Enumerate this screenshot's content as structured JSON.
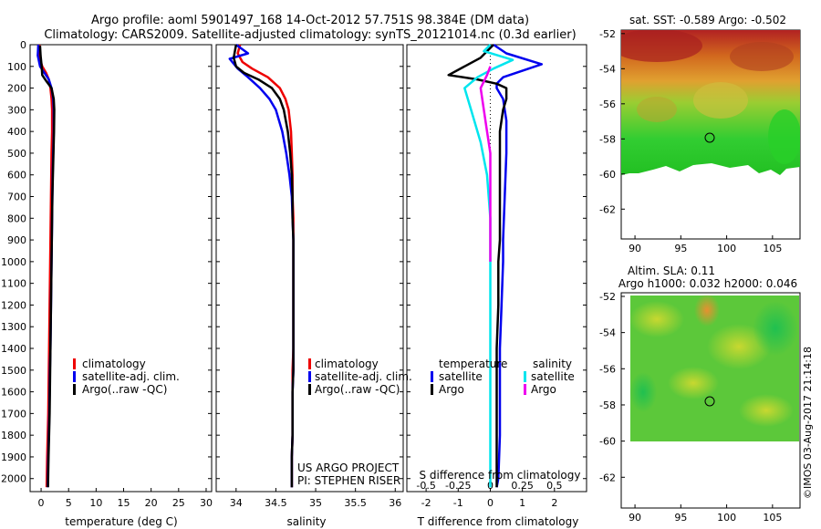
{
  "header": {
    "line1": "Argo profile: aoml 5901497_168 14-Oct-2012 57.751S 98.384E (DM data)",
    "line2": "Climatology: CARS2009. Satellite-adjusted climatology: synTS_20121014.nc (0.3d earlier)"
  },
  "credit": "©IMOS 03-Aug-2017 21:14:18",
  "project": {
    "line1": "US ARGO PROJECT",
    "line2": "PI: STEPHEN RISER"
  },
  "colors": {
    "climatology": "#ee0000",
    "satellite": "#0000ee",
    "argo": "#000000",
    "sal_satellite": "#00e5ee",
    "sal_argo": "#ee00ee"
  },
  "chart_data": [
    {
      "id": "temperature",
      "type": "line",
      "xlabel": "temperature (deg C)",
      "ylabel": "",
      "xlim": [
        -2,
        31
      ],
      "ylim": [
        2060,
        0
      ],
      "xticks": [
        0,
        5,
        10,
        15,
        20,
        25,
        30
      ],
      "yticks": [
        0,
        100,
        200,
        300,
        400,
        500,
        600,
        700,
        800,
        900,
        1000,
        1100,
        1200,
        1300,
        1400,
        1500,
        1600,
        1700,
        1800,
        1900,
        2000
      ],
      "legend": [
        "climatology",
        "satellite-adj. clim.",
        "Argo(..raw -QC)"
      ],
      "series": [
        {
          "name": "climatology",
          "color": "#ee0000",
          "x": [
            -0.3,
            -0.4,
            0.2,
            0.9,
            1.4,
            1.7,
            1.9,
            2.0,
            2.0,
            1.9,
            1.85,
            1.8,
            1.75,
            1.7,
            1.65,
            1.6,
            1.55,
            1.5,
            1.45,
            1.4,
            1.35,
            1.3,
            1.2,
            1.1,
            1.0
          ],
          "y": [
            0,
            50,
            100,
            130,
            160,
            200,
            250,
            300,
            400,
            500,
            600,
            700,
            800,
            900,
            1000,
            1100,
            1200,
            1300,
            1400,
            1500,
            1600,
            1700,
            1800,
            1900,
            2040
          ]
        },
        {
          "name": "satellite-adj. clim.",
          "color": "#0000ee",
          "x": [
            -0.5,
            -0.6,
            -0.2,
            0.6,
            1.4,
            1.9,
            2.2,
            2.3,
            2.3,
            2.2,
            2.1,
            2.05,
            2.0,
            1.95,
            1.9,
            1.85,
            1.8,
            1.75,
            1.7,
            1.6,
            1.55,
            1.5,
            1.4,
            1.3,
            1.2
          ],
          "y": [
            0,
            50,
            100,
            130,
            160,
            200,
            250,
            300,
            400,
            500,
            600,
            700,
            800,
            900,
            1000,
            1100,
            1200,
            1300,
            1400,
            1500,
            1600,
            1700,
            1800,
            1900,
            2040
          ]
        },
        {
          "name": "Argo(..raw -QC)",
          "color": "#000000",
          "x": [
            -0.2,
            -0.1,
            0.1,
            0.2,
            1.0,
            1.9,
            2.3,
            2.4,
            2.35,
            2.25,
            2.15,
            2.05,
            2.0,
            1.95,
            1.9,
            1.85,
            1.8,
            1.75,
            1.7,
            1.65,
            1.6,
            1.55,
            1.45,
            1.35,
            1.25
          ],
          "y": [
            5,
            50,
            100,
            140,
            170,
            200,
            250,
            300,
            400,
            500,
            600,
            700,
            800,
            900,
            1000,
            1100,
            1200,
            1300,
            1400,
            1500,
            1600,
            1700,
            1800,
            1900,
            2040
          ]
        }
      ]
    },
    {
      "id": "salinity",
      "type": "line",
      "xlabel": "salinity",
      "ylabel": "",
      "xlim": [
        33.75,
        36.1
      ],
      "ylim": [
        2060,
        0
      ],
      "xticks": [
        34,
        34.5,
        35,
        35.5,
        36
      ],
      "legend": [
        "climatology",
        "satellite-adj. clim.",
        "Argo(..raw -QC)"
      ],
      "series": [
        {
          "name": "climatology",
          "color": "#ee0000",
          "x": [
            34.05,
            34.02,
            34.08,
            34.2,
            34.4,
            34.55,
            34.62,
            34.66,
            34.69,
            34.7,
            34.71,
            34.71,
            34.72,
            34.72,
            34.72,
            34.72,
            34.72,
            34.72,
            34.72,
            34.71,
            34.71,
            34.71,
            34.71,
            34.7,
            34.7
          ],
          "y": [
            0,
            40,
            80,
            110,
            150,
            200,
            250,
            300,
            400,
            500,
            600,
            700,
            800,
            900,
            1000,
            1100,
            1200,
            1300,
            1400,
            1500,
            1600,
            1700,
            1800,
            1900,
            2040
          ]
        },
        {
          "name": "satellite-adj. clim.",
          "color": "#0000ee",
          "x": [
            34.0,
            34.15,
            33.92,
            34.02,
            34.15,
            34.3,
            34.42,
            34.5,
            34.58,
            34.63,
            34.67,
            34.7,
            34.71,
            34.72,
            34.72,
            34.72,
            34.72,
            34.72,
            34.72,
            34.72,
            34.71,
            34.71,
            34.71,
            34.7,
            34.7
          ],
          "y": [
            0,
            40,
            65,
            110,
            150,
            200,
            250,
            300,
            400,
            500,
            600,
            700,
            800,
            900,
            1000,
            1100,
            1200,
            1300,
            1400,
            1500,
            1600,
            1700,
            1800,
            1900,
            2040
          ]
        },
        {
          "name": "Argo(..raw -QC)",
          "color": "#000000",
          "x": [
            34.0,
            33.97,
            34.0,
            34.1,
            34.28,
            34.45,
            34.55,
            34.6,
            34.65,
            34.68,
            34.7,
            34.71,
            34.71,
            34.72,
            34.72,
            34.72,
            34.72,
            34.72,
            34.72,
            34.72,
            34.71,
            34.71,
            34.71,
            34.7,
            34.7
          ],
          "y": [
            0,
            60,
            100,
            130,
            160,
            200,
            250,
            300,
            400,
            500,
            600,
            700,
            800,
            900,
            1000,
            1100,
            1200,
            1300,
            1400,
            1500,
            1600,
            1700,
            1800,
            1900,
            2040
          ]
        }
      ]
    },
    {
      "id": "differences",
      "type": "line",
      "xlabel": "T difference from climatology",
      "top_axis_label": "S difference from climatology",
      "xlim": [
        -2.6,
        3.0
      ],
      "ylim": [
        2060,
        0
      ],
      "xticks": [
        -2,
        -1,
        0,
        1,
        2
      ],
      "top_xticks": [
        "-0.5",
        "-0.25",
        "0",
        "0.25",
        "0.5"
      ],
      "legend_left_title": "temperature",
      "legend_right_title": "salinity",
      "legend": [
        "satellite",
        "Argo",
        "satellite",
        "Argo"
      ],
      "series": [
        {
          "name": "temperature satellite",
          "color": "#0000ee",
          "x": [
            0.1,
            0.5,
            1.6,
            0.8,
            0.4,
            0.2,
            0.2,
            0.4,
            0.5,
            0.5,
            0.45,
            0.4,
            0.4,
            0.35,
            0.3,
            0.3,
            0.3,
            0.3,
            0.25,
            0.2
          ],
          "y": [
            0,
            40,
            90,
            130,
            150,
            180,
            200,
            250,
            350,
            500,
            700,
            900,
            1000,
            1200,
            1400,
            1500,
            1600,
            1800,
            2000,
            2040
          ]
        },
        {
          "name": "temperature Argo",
          "color": "#000000",
          "x": [
            0.1,
            -0.3,
            -1.3,
            -0.4,
            0.2,
            0.5,
            0.5,
            0.4,
            0.3,
            0.3,
            0.3,
            0.3,
            0.25,
            0.25,
            0.2,
            0.2,
            0.2,
            0.2,
            0.2,
            0.2
          ],
          "y": [
            0,
            60,
            140,
            160,
            180,
            200,
            250,
            300,
            400,
            500,
            700,
            900,
            1000,
            1200,
            1400,
            1500,
            1600,
            1800,
            2000,
            2040
          ]
        },
        {
          "name": "salinity satellite",
          "color": "#00e5ee",
          "x": [
            0.0,
            -0.2,
            0.7,
            0.1,
            -0.4,
            -0.8,
            -0.6,
            -0.3,
            -0.1,
            0.0,
            0.0,
            0.0,
            0.0,
            0.0,
            0.0,
            0.0,
            0.0,
            0.0,
            0.0,
            0.0
          ],
          "y": [
            0,
            30,
            70,
            110,
            150,
            200,
            300,
            450,
            600,
            800,
            1000,
            1200,
            1300,
            1400,
            1500,
            1600,
            1700,
            1800,
            1900,
            2040
          ]
        },
        {
          "name": "salinity Argo",
          "color": "#ee00ee",
          "x": [
            0.0,
            -0.1,
            -0.2,
            -0.3,
            -0.2,
            -0.1,
            0.0,
            0.0,
            0.0,
            0.0,
            0.0,
            0.0
          ],
          "y": [
            100,
            140,
            170,
            200,
            300,
            400,
            500,
            600,
            700,
            800,
            900,
            1000
          ]
        }
      ]
    },
    {
      "id": "sat-sst-map",
      "type": "heatmap",
      "title": "sat. SST: -0.589  Argo: -0.502",
      "xticks": [
        "90",
        "95",
        "100",
        "105"
      ],
      "yticks": [
        "-52",
        "-54",
        "-56",
        "-58",
        "-60",
        "-62"
      ],
      "xlim": [
        88.5,
        108
      ],
      "ylim": [
        -63.7,
        -51.8
      ],
      "marker": {
        "lon": 98.384,
        "lat": -57.751
      }
    },
    {
      "id": "altim-sla-map",
      "type": "heatmap",
      "title": "Altim. SLA: 0.11",
      "subtitle": "Argo h1000: 0.032  h2000: 0.046",
      "xticks": [
        "90",
        "95",
        "100",
        "105"
      ],
      "yticks": [
        "-52",
        "-54",
        "-56",
        "-58",
        "-60",
        "-62"
      ],
      "xlim": [
        88.5,
        108
      ],
      "ylim": [
        -63.7,
        -51.8
      ],
      "marker": {
        "lon": 98.384,
        "lat": -57.751
      }
    }
  ]
}
